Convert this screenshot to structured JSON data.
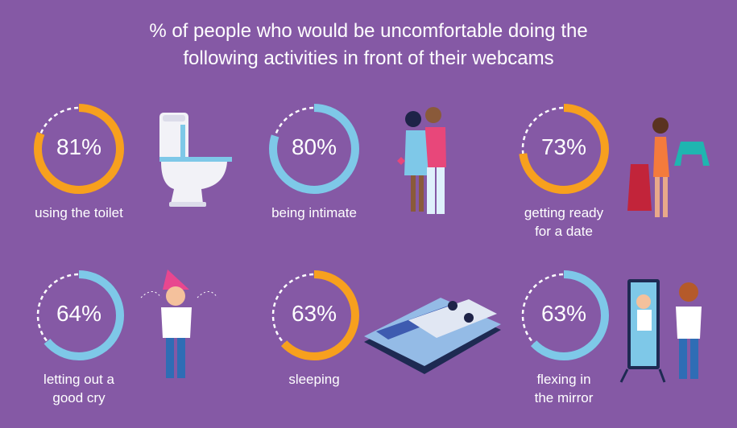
{
  "title": [
    "% of people who would be uncomfortable doing the",
    "following activities in front of their webcams"
  ],
  "colors": {
    "background": "#8559a5",
    "orange": "#f7a01e",
    "blue": "#7ec8e8",
    "remainder": "#ffffff"
  },
  "chart_data": {
    "type": "donut",
    "title": "% of people who would be uncomfortable doing the following activities in front of their webcams",
    "items": [
      {
        "label": "using the toilet",
        "label_lines": [
          "using the toilet"
        ],
        "value": 81,
        "display": "81%",
        "color": "#f7a01e",
        "icon": "toilet-illustration"
      },
      {
        "label": "being intimate",
        "label_lines": [
          "being intimate"
        ],
        "value": 80,
        "display": "80%",
        "color": "#7ec8e8",
        "icon": "couple-illustration"
      },
      {
        "label": "getting ready for a date",
        "label_lines": [
          "getting ready",
          "for a date"
        ],
        "value": 73,
        "display": "73%",
        "color": "#f7a01e",
        "icon": "woman-choosing-dress-illustration"
      },
      {
        "label": "letting out a good cry",
        "label_lines": [
          "letting out a",
          "good cry"
        ],
        "value": 64,
        "display": "64%",
        "color": "#7ec8e8",
        "icon": "crying-girl-illustration"
      },
      {
        "label": "sleeping",
        "label_lines": [
          "sleeping"
        ],
        "value": 63,
        "display": "63%",
        "color": "#f7a01e",
        "icon": "bed-illustration"
      },
      {
        "label": "flexing in the mirror",
        "label_lines": [
          "flexing in",
          "the mirror"
        ],
        "value": 63,
        "display": "63%",
        "color": "#7ec8e8",
        "icon": "mirror-flexing-illustration"
      }
    ]
  }
}
